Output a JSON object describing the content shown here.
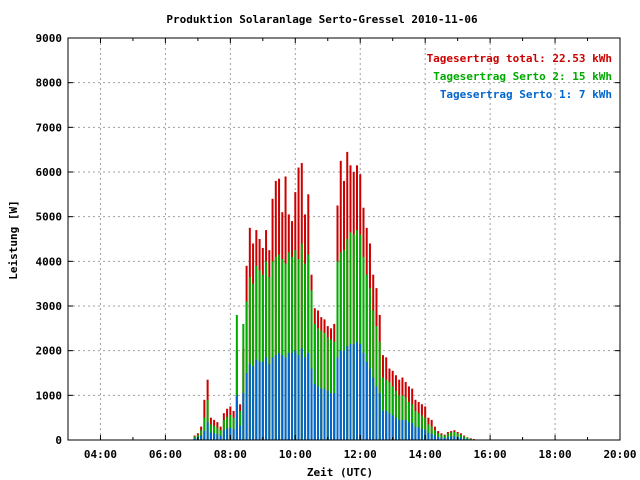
{
  "chart_data": {
    "type": "bar",
    "title": "Produktion Solaranlage Serto-Gressel 2010-11-06",
    "xlabel": "Zeit (UTC)",
    "ylabel": "Leistung [W]",
    "x_unit": "hours UTC",
    "xlim": [
      3.0,
      20.0
    ],
    "ylim": [
      0,
      9000
    ],
    "grid": true,
    "legend_position": "top-right",
    "xticks": [
      {
        "value": 4,
        "label": "04:00"
      },
      {
        "value": 6,
        "label": "06:00"
      },
      {
        "value": 8,
        "label": "08:00"
      },
      {
        "value": 10,
        "label": "10:00"
      },
      {
        "value": 12,
        "label": "12:00"
      },
      {
        "value": 14,
        "label": "14:00"
      },
      {
        "value": 16,
        "label": "16:00"
      },
      {
        "value": 18,
        "label": "18:00"
      },
      {
        "value": 20,
        "label": "20:00"
      }
    ],
    "yticks": [
      {
        "value": 0,
        "label": "0"
      },
      {
        "value": 1000,
        "label": "1000"
      },
      {
        "value": 2000,
        "label": "2000"
      },
      {
        "value": 3000,
        "label": "3000"
      },
      {
        "value": 4000,
        "label": "4000"
      },
      {
        "value": 5000,
        "label": "5000"
      },
      {
        "value": 6000,
        "label": "6000"
      },
      {
        "value": 7000,
        "label": "7000"
      },
      {
        "value": 8000,
        "label": "8000"
      },
      {
        "value": 9000,
        "label": "9000"
      }
    ],
    "legend": [
      {
        "text": "Tagesertrag total: 22.53 kWh",
        "color": "#cc0000"
      },
      {
        "text": "Tagesertrag Serto 2: 15 kWh",
        "color": "#00aa00"
      },
      {
        "text": "Tagesertrag Serto 1: 7 kWh",
        "color": "#0066cc"
      }
    ],
    "x": [
      6.9,
      7.0,
      7.1,
      7.2,
      7.3,
      7.4,
      7.5,
      7.6,
      7.7,
      7.8,
      7.9,
      8.0,
      8.1,
      8.2,
      8.3,
      8.4,
      8.5,
      8.6,
      8.7,
      8.8,
      8.9,
      9.0,
      9.1,
      9.2,
      9.3,
      9.4,
      9.5,
      9.6,
      9.7,
      9.8,
      9.9,
      10.0,
      10.1,
      10.2,
      10.3,
      10.4,
      10.5,
      10.6,
      10.7,
      10.8,
      10.9,
      11.0,
      11.1,
      11.2,
      11.3,
      11.4,
      11.5,
      11.6,
      11.7,
      11.8,
      11.9,
      12.0,
      12.1,
      12.2,
      12.3,
      12.4,
      12.5,
      12.6,
      12.7,
      12.8,
      12.9,
      13.0,
      13.1,
      13.2,
      13.3,
      13.4,
      13.5,
      13.6,
      13.7,
      13.8,
      13.9,
      14.0,
      14.1,
      14.2,
      14.3,
      14.4,
      14.5,
      14.6,
      14.7,
      14.8,
      14.9,
      15.0,
      15.1,
      15.2,
      15.3,
      15.4,
      15.5,
      15.6
    ],
    "series": [
      {
        "name": "Tagesertrag total: 22.53 kWh",
        "color": "#cc0000",
        "values": [
          100,
          150,
          300,
          900,
          1350,
          500,
          450,
          400,
          300,
          600,
          700,
          750,
          650,
          2000,
          800,
          2050,
          3900,
          4750,
          4400,
          4700,
          4500,
          4300,
          4700,
          4250,
          5400,
          5800,
          5850,
          5100,
          5900,
          5050,
          4900,
          5550,
          6100,
          6200,
          5050,
          5500,
          3700,
          2950,
          2900,
          2750,
          2700,
          2550,
          2500,
          2600,
          5250,
          6250,
          5800,
          6450,
          6150,
          6000,
          6150,
          5950,
          5200,
          4750,
          4400,
          3700,
          3400,
          2800,
          1900,
          1850,
          1600,
          1550,
          1450,
          1350,
          1400,
          1300,
          1200,
          1150,
          900,
          850,
          800,
          750,
          500,
          450,
          300,
          200,
          150,
          120,
          180,
          200,
          220,
          180,
          150,
          100,
          60,
          40,
          20,
          10
        ]
      },
      {
        "name": "Tagesertrag Serto 2: 15 kWh",
        "color": "#00aa00",
        "values": [
          80,
          110,
          220,
          500,
          900,
          350,
          320,
          280,
          220,
          450,
          520,
          560,
          500,
          2800,
          650,
          2600,
          3100,
          3650,
          3500,
          3900,
          3800,
          3700,
          4000,
          3650,
          4000,
          4100,
          4150,
          4050,
          3950,
          4200,
          4100,
          4250,
          4050,
          4400,
          3950,
          4150,
          3350,
          2600,
          2500,
          2450,
          2400,
          2300,
          2250,
          2200,
          4000,
          4200,
          4250,
          4500,
          4650,
          4600,
          4700,
          4600,
          4100,
          3700,
          3400,
          2900,
          2550,
          2200,
          1400,
          1350,
          1300,
          1200,
          1100,
          1000,
          1000,
          950,
          850,
          800,
          650,
          600,
          550,
          500,
          350,
          300,
          220,
          150,
          120,
          100,
          150,
          170,
          180,
          150,
          120,
          80,
          50,
          30,
          15,
          8
        ]
      },
      {
        "name": "Tagesertrag Serto 1: 7 kWh",
        "color": "#0066cc",
        "values": [
          40,
          60,
          100,
          200,
          400,
          170,
          150,
          130,
          100,
          220,
          260,
          280,
          240,
          1000,
          320,
          1050,
          1500,
          1700,
          1650,
          1800,
          1750,
          1750,
          1850,
          1700,
          1850,
          1900,
          1950,
          1900,
          1850,
          1950,
          1950,
          2000,
          1900,
          2050,
          1850,
          1950,
          1600,
          1250,
          1200,
          1150,
          1150,
          1100,
          1050,
          1050,
          1850,
          2000,
          2000,
          2100,
          2150,
          2150,
          2200,
          2150,
          1950,
          1750,
          1600,
          1400,
          1200,
          1050,
          650,
          650,
          600,
          550,
          500,
          450,
          450,
          450,
          400,
          380,
          300,
          280,
          250,
          230,
          160,
          140,
          100,
          70,
          55,
          45,
          70,
          80,
          85,
          70,
          55,
          35,
          22,
          14,
          7,
          4
        ]
      }
    ]
  }
}
